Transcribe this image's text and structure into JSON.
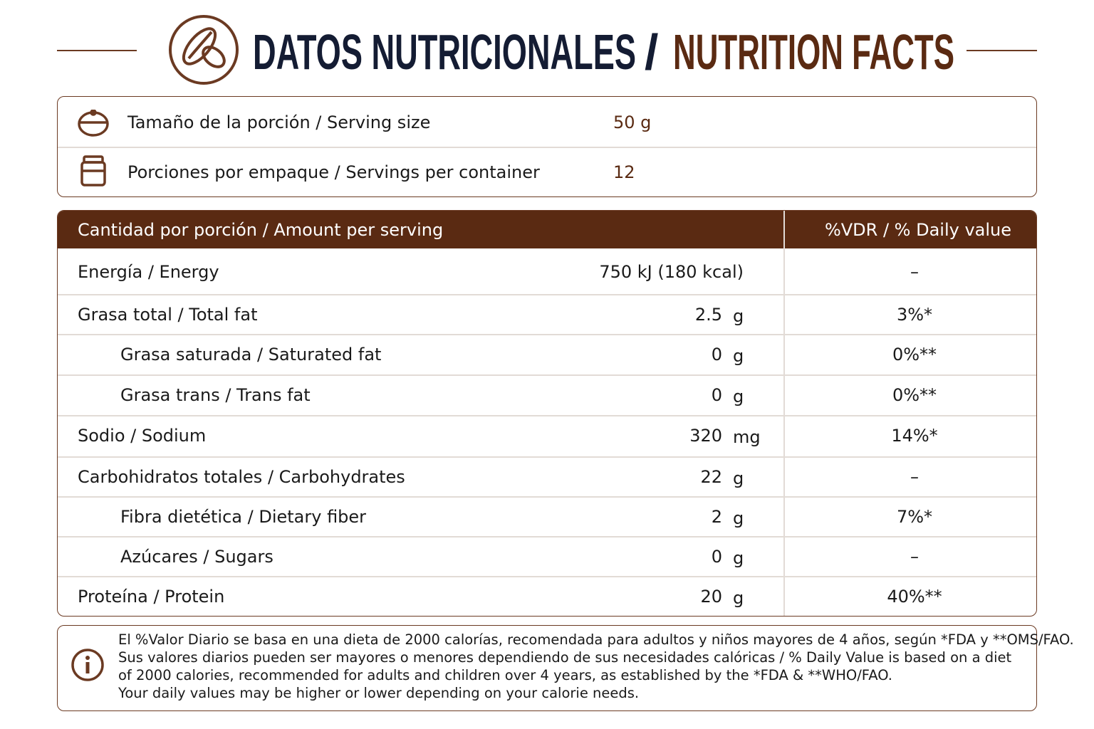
{
  "header": {
    "title_es": "DATOS NUTRICIONALES",
    "separator": "/",
    "title_en": "NUTRITION FACTS"
  },
  "serving": [
    {
      "label": "Tamaño de la porción / Serving size",
      "value": "50 g"
    },
    {
      "label": "Porciones por empaque / Servings per container",
      "value": "12"
    }
  ],
  "table": {
    "headers": [
      "Cantidad por porción / Amount per serving",
      "%VDR / % Daily value"
    ],
    "rows": [
      {
        "label": "Energía / Energy",
        "amount": "750 kJ (180 kcal)",
        "dv": "–"
      },
      {
        "label": "Grasa total / Total fat",
        "amount": "2.5",
        "unit": "g",
        "dv": "3%*"
      },
      {
        "label": "Grasa saturada / Saturated fat",
        "amount": "0",
        "unit": "g",
        "dv": "0%**"
      },
      {
        "label": "Grasa trans / Trans fat",
        "amount": "0",
        "unit": "g",
        "dv": "0%**"
      },
      {
        "label": "Sodio / Sodium",
        "amount": "320",
        "unit": "mg",
        "dv": "14%*"
      },
      {
        "label": "Carbohidratos totales / Carbohydrates",
        "amount": "22",
        "unit": "g",
        "dv": "–"
      },
      {
        "label": "Fibra dietética / Dietary fiber",
        "amount": "2",
        "unit": "g",
        "dv": "7%*"
      },
      {
        "label": "Azúcares / Sugars",
        "amount": "0",
        "unit": "g",
        "dv": "–"
      },
      {
        "label": "Proteína / Protein",
        "amount": "20",
        "unit": "g",
        "dv": "40%**"
      }
    ]
  },
  "footnote": [
    "El %Valor Diario se basa en una dieta de 2000 calorías, recomendada para adultos y niños mayores de 4 años, según *FDA y **OMS/FAO.",
    "Sus valores diarios pueden ser mayores o menores dependiendo de sus necesidades calóricas / % Daily Value is based on a diet",
    "of 2000 calories, recommended for adults and children over 4 years, as established by the *FDA & **WHO/FAO.",
    "Your daily values may be higher or lower depending on your calorie needs."
  ]
}
